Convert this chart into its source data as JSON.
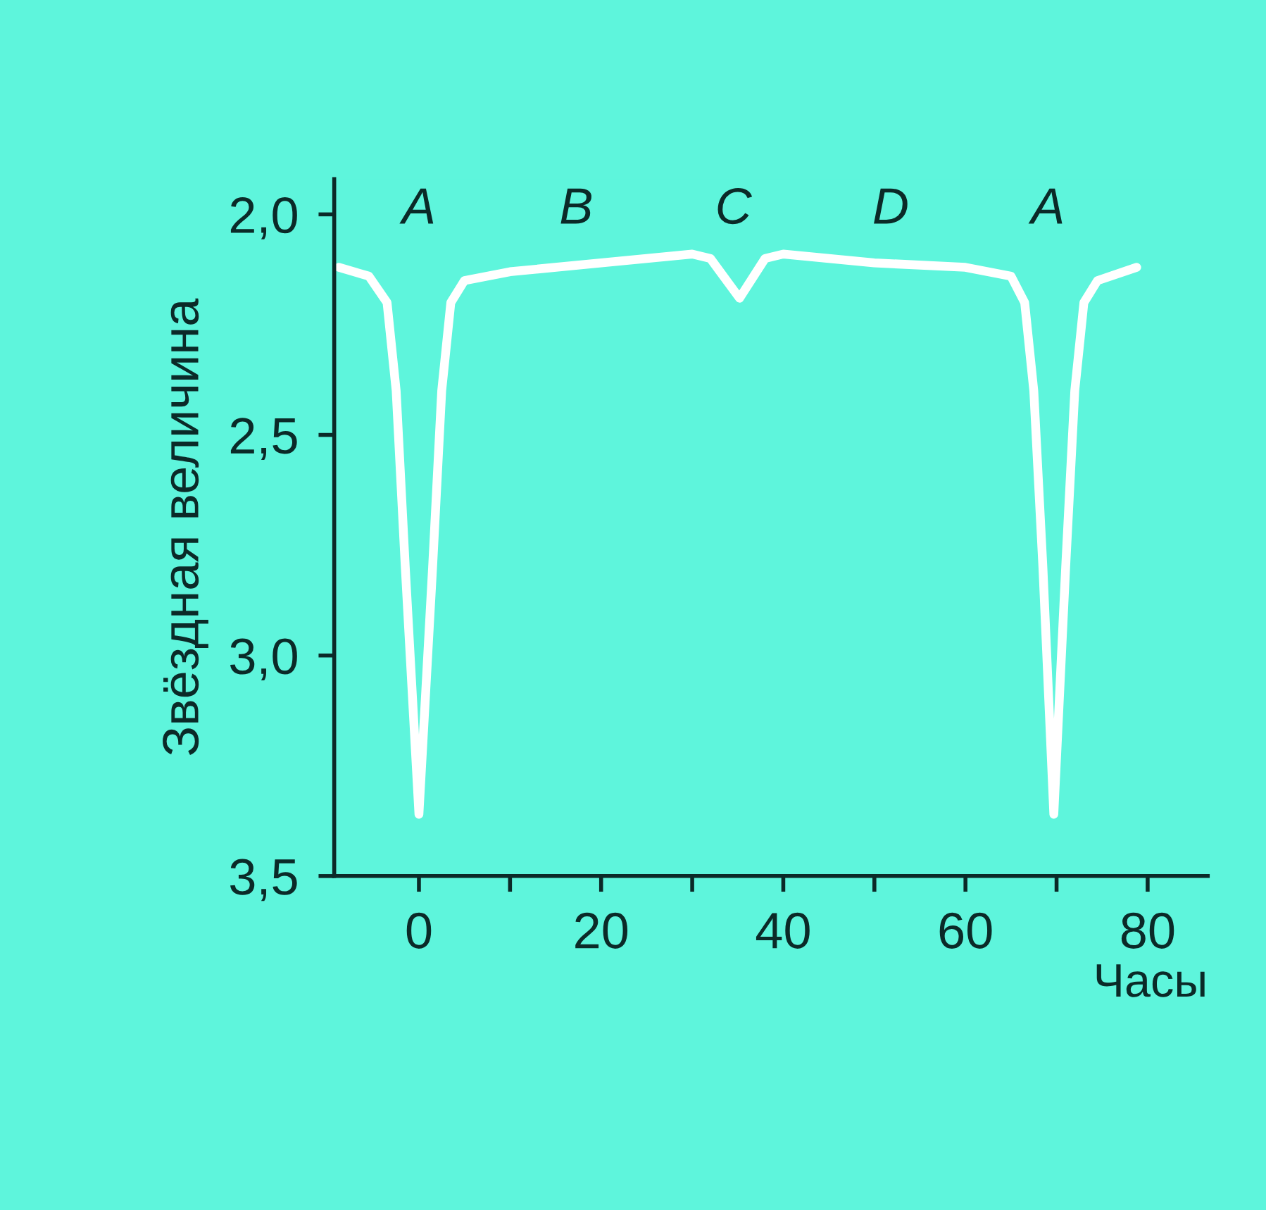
{
  "chart_data": {
    "type": "line",
    "xlabel": "Часы",
    "ylabel": "Звёздная величина",
    "x": [
      -8.8,
      -5.5,
      -3.5,
      -2.5,
      -1.5,
      0,
      1.5,
      2.5,
      3.5,
      5,
      10,
      20,
      30,
      32,
      35.2,
      38,
      40,
      50,
      60,
      65,
      66.5,
      67.5,
      68.5,
      69.7,
      71,
      72,
      73,
      74.5,
      78.8
    ],
    "series": [
      {
        "color": "#ffffff",
        "values": [
          2.12,
          2.14,
          2.2,
          2.4,
          2.8,
          3.36,
          2.8,
          2.4,
          2.2,
          2.15,
          2.13,
          2.11,
          2.09,
          2.1,
          2.19,
          2.1,
          2.09,
          2.11,
          2.12,
          2.14,
          2.2,
          2.4,
          2.8,
          3.36,
          2.8,
          2.4,
          2.2,
          2.15,
          2.12
        ]
      }
    ],
    "xlim": [
      -9.3,
      86.6
    ],
    "ylim": [
      3.5,
      1.92
    ],
    "xticks": [
      0,
      {
        "value": 10,
        "label": null
      },
      20,
      {
        "value": 30,
        "label": null
      },
      40,
      {
        "value": 50,
        "label": null
      },
      60,
      {
        "value": 70,
        "label": null
      },
      80
    ],
    "yticks": [
      {
        "value": 2.0,
        "label": "2,0"
      },
      {
        "value": 2.5,
        "label": "2,5"
      },
      {
        "value": 3.0,
        "label": "3,0"
      },
      {
        "value": 3.5,
        "label": "3,5"
      }
    ],
    "annotations": [
      "A",
      "B",
      "C",
      "D",
      "A"
    ],
    "grid": false,
    "legend": false,
    "marker": "none",
    "line_style": "solid"
  }
}
